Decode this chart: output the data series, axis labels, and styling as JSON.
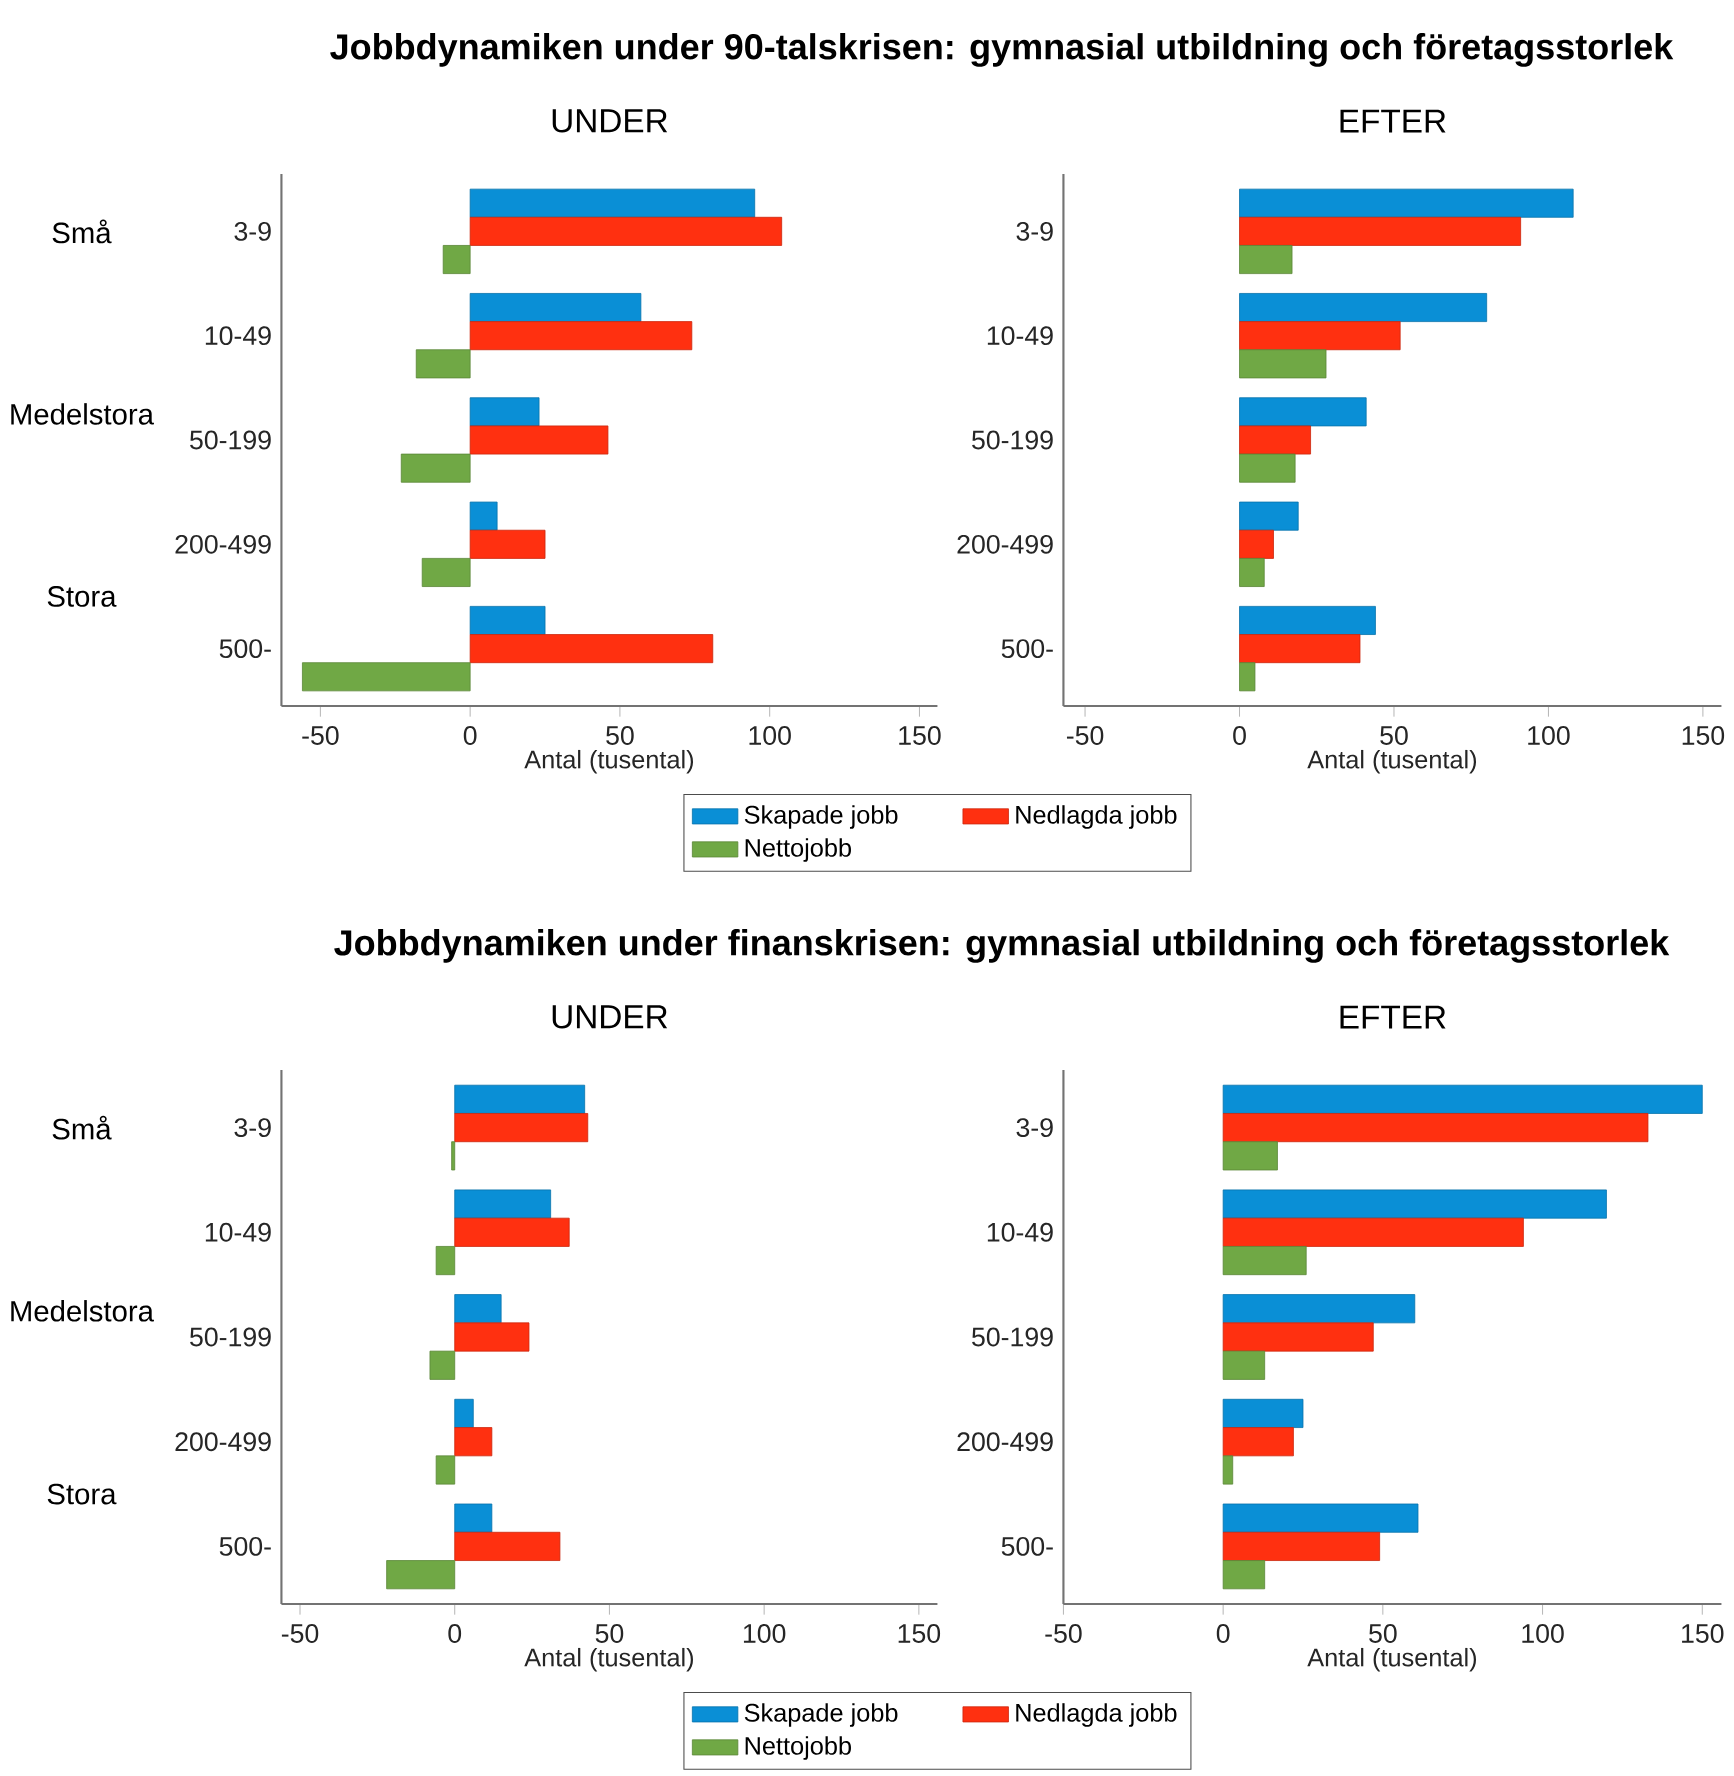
{
  "chart_data": [
    {
      "type": "bar",
      "orientation": "horizontal",
      "title": "Jobbdynamiken under 90-talskrisen: gymnasial utbildning och företagsstorlek",
      "subtitle": "UNDER",
      "xlabel": "Antal (tusental)",
      "categories": [
        "3-9",
        "10-49",
        "50-199",
        "200-499",
        "500-"
      ],
      "xlim": [
        -63,
        156
      ],
      "xticks": [
        -50,
        0,
        50,
        100,
        150
      ],
      "legend": "bottom",
      "annotations": [
        "Små",
        "Medelstora",
        "Stora"
      ],
      "series": [
        {
          "name": "Skapade jobb",
          "color": "#0a8fd6",
          "values": [
            95,
            57,
            23,
            9,
            25
          ]
        },
        {
          "name": "Nedlagda jobb",
          "color": "#ff3010",
          "values": [
            104,
            74,
            46,
            25,
            81
          ]
        },
        {
          "name": "Nettojobb",
          "color": "#70a845",
          "values": [
            -9,
            -18,
            -23,
            -16,
            -56
          ]
        }
      ]
    },
    {
      "type": "bar",
      "orientation": "horizontal",
      "title": "EFTER",
      "xlabel": "Antal (tusental)",
      "categories": [
        "3-9",
        "10-49",
        "50-199",
        "200-499",
        "500-"
      ],
      "xlim": [
        -57,
        156
      ],
      "xticks": [
        -50,
        0,
        50,
        100,
        150
      ],
      "series": [
        {
          "color": "#0a8fd6",
          "values": [
            108,
            80,
            41,
            19,
            44
          ]
        },
        {
          "color": "#ff3010",
          "values": [
            91,
            52,
            23,
            11,
            39
          ]
        },
        {
          "color": "#70a845",
          "values": [
            17,
            28,
            18,
            8,
            5
          ]
        }
      ]
    },
    {
      "type": "bar",
      "orientation": "horizontal",
      "title": "Jobbdynamiken under finanskrisen: gymnasial utbildning och företagsstorlek",
      "subtitle": "UNDER",
      "xlabel": "Antal (tusental)",
      "categories": [
        "3-9",
        "10-49",
        "50-199",
        "200-499",
        "500-"
      ],
      "xlim": [
        -56,
        156
      ],
      "xticks": [
        -50,
        0,
        50,
        100,
        150
      ],
      "legend": "bottom",
      "annotations": [
        "Små",
        "Medelstora",
        "Stora"
      ],
      "series": [
        {
          "name": "Skapade jobb",
          "color": "#0a8fd6",
          "values": [
            42,
            31,
            15,
            6,
            12
          ]
        },
        {
          "name": "Nedlagda jobb",
          "color": "#ff3010",
          "values": [
            43,
            37,
            24,
            12,
            34
          ]
        },
        {
          "name": "Nettojobb",
          "color": "#70a845",
          "values": [
            -1,
            -6,
            -8,
            -6,
            -22
          ]
        }
      ]
    },
    {
      "type": "bar",
      "orientation": "horizontal",
      "title": "EFTER",
      "xlabel": "Antal (tusental)",
      "categories": [
        "3-9",
        "10-49",
        "50-199",
        "200-499",
        "500-"
      ],
      "xlim": [
        -50,
        156
      ],
      "xticks": [
        -50,
        0,
        50,
        100,
        150
      ],
      "series": [
        {
          "color": "#0a8fd6",
          "values": [
            150,
            120,
            60,
            25,
            61
          ]
        },
        {
          "color": "#ff3010",
          "values": [
            133,
            94,
            47,
            22,
            49
          ]
        },
        {
          "color": "#70a845",
          "values": [
            17,
            26,
            13,
            3,
            13
          ]
        }
      ]
    }
  ]
}
